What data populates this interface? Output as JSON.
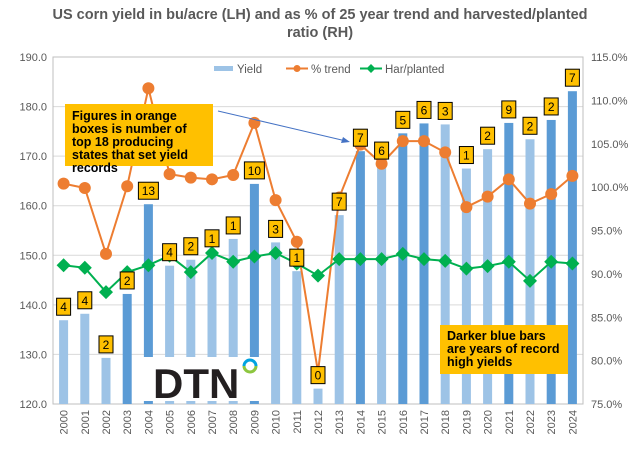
{
  "chart_data": {
    "type": "bar",
    "title": "US corn yield in bu/acre (LH) and as % of 25 year trend and harvested/planted ratio (RH)",
    "categories": [
      "2000",
      "2001",
      "2002",
      "2003",
      "2004",
      "2005",
      "2006",
      "2007",
      "2008",
      "2009",
      "2010",
      "2011",
      "2012",
      "2013",
      "2014",
      "2015",
      "2016",
      "2017",
      "2018",
      "2019",
      "2020",
      "2021",
      "2022",
      "2023",
      "2024"
    ],
    "series": [
      {
        "name": "Yield",
        "axis": "left",
        "type": "bar",
        "values": [
          136.9,
          138.2,
          129.3,
          142.2,
          160.3,
          147.9,
          149.1,
          150.7,
          153.3,
          164.4,
          152.6,
          146.8,
          123.1,
          158.1,
          171.0,
          168.4,
          174.6,
          176.6,
          176.4,
          167.5,
          171.4,
          176.7,
          173.4,
          177.3,
          183.1
        ],
        "record": [
          false,
          false,
          false,
          true,
          true,
          false,
          false,
          false,
          false,
          true,
          false,
          false,
          false,
          false,
          true,
          false,
          true,
          true,
          false,
          false,
          false,
          true,
          false,
          true,
          true
        ]
      },
      {
        "name": "% trend",
        "axis": "right",
        "type": "line",
        "values": [
          100.4,
          99.9,
          92.3,
          100.1,
          111.4,
          101.5,
          101.1,
          100.9,
          101.4,
          107.4,
          98.5,
          93.7,
          78.7,
          98.8,
          104.9,
          102.7,
          105.3,
          105.3,
          104.0,
          97.7,
          98.9,
          100.9,
          98.1,
          99.2,
          101.3
        ]
      },
      {
        "name": "Har/planted",
        "axis": "right",
        "type": "line",
        "values": [
          91.0,
          90.7,
          87.9,
          90.2,
          91.0,
          92.1,
          90.2,
          92.4,
          91.4,
          92.0,
          92.4,
          91.2,
          89.8,
          91.7,
          91.7,
          91.7,
          92.3,
          91.7,
          91.5,
          90.6,
          90.9,
          91.4,
          89.2,
          91.4,
          91.2
        ]
      }
    ],
    "record_state_counts": [
      "4",
      "4",
      "2",
      "2",
      "13",
      "4",
      "2",
      "1",
      "1",
      "10",
      "3",
      "1",
      "0",
      "7",
      "7",
      "6",
      "5",
      "6",
      "3",
      "1",
      "2",
      "9",
      "2",
      "2",
      "7"
    ],
    "ylim": [
      120,
      190
    ],
    "y_ticks": [
      "120.0",
      "130.0",
      "140.0",
      "150.0",
      "160.0",
      "170.0",
      "180.0",
      "190.0"
    ],
    "y2lim": [
      75,
      115
    ],
    "y2_ticks": [
      "75.0%",
      "80.0%",
      "85.0%",
      "90.0%",
      "95.0%",
      "100.0%",
      "105.0%",
      "110.0%",
      "115.0%"
    ],
    "legend": "top-right",
    "grid": true,
    "colors": {
      "bar_light": "#9DC3E6",
      "bar_dark": "#5B9BD5",
      "trend": "#ED7D31",
      "har": "#00B050",
      "box": "#FFC000"
    }
  },
  "annotations": {
    "orange_boxes_note": "Figures in orange boxes is number of top 18 producing states that set yield records",
    "dark_bars_note": "Darker blue bars are years of record high yields"
  },
  "logo": {
    "text": "DTN"
  }
}
